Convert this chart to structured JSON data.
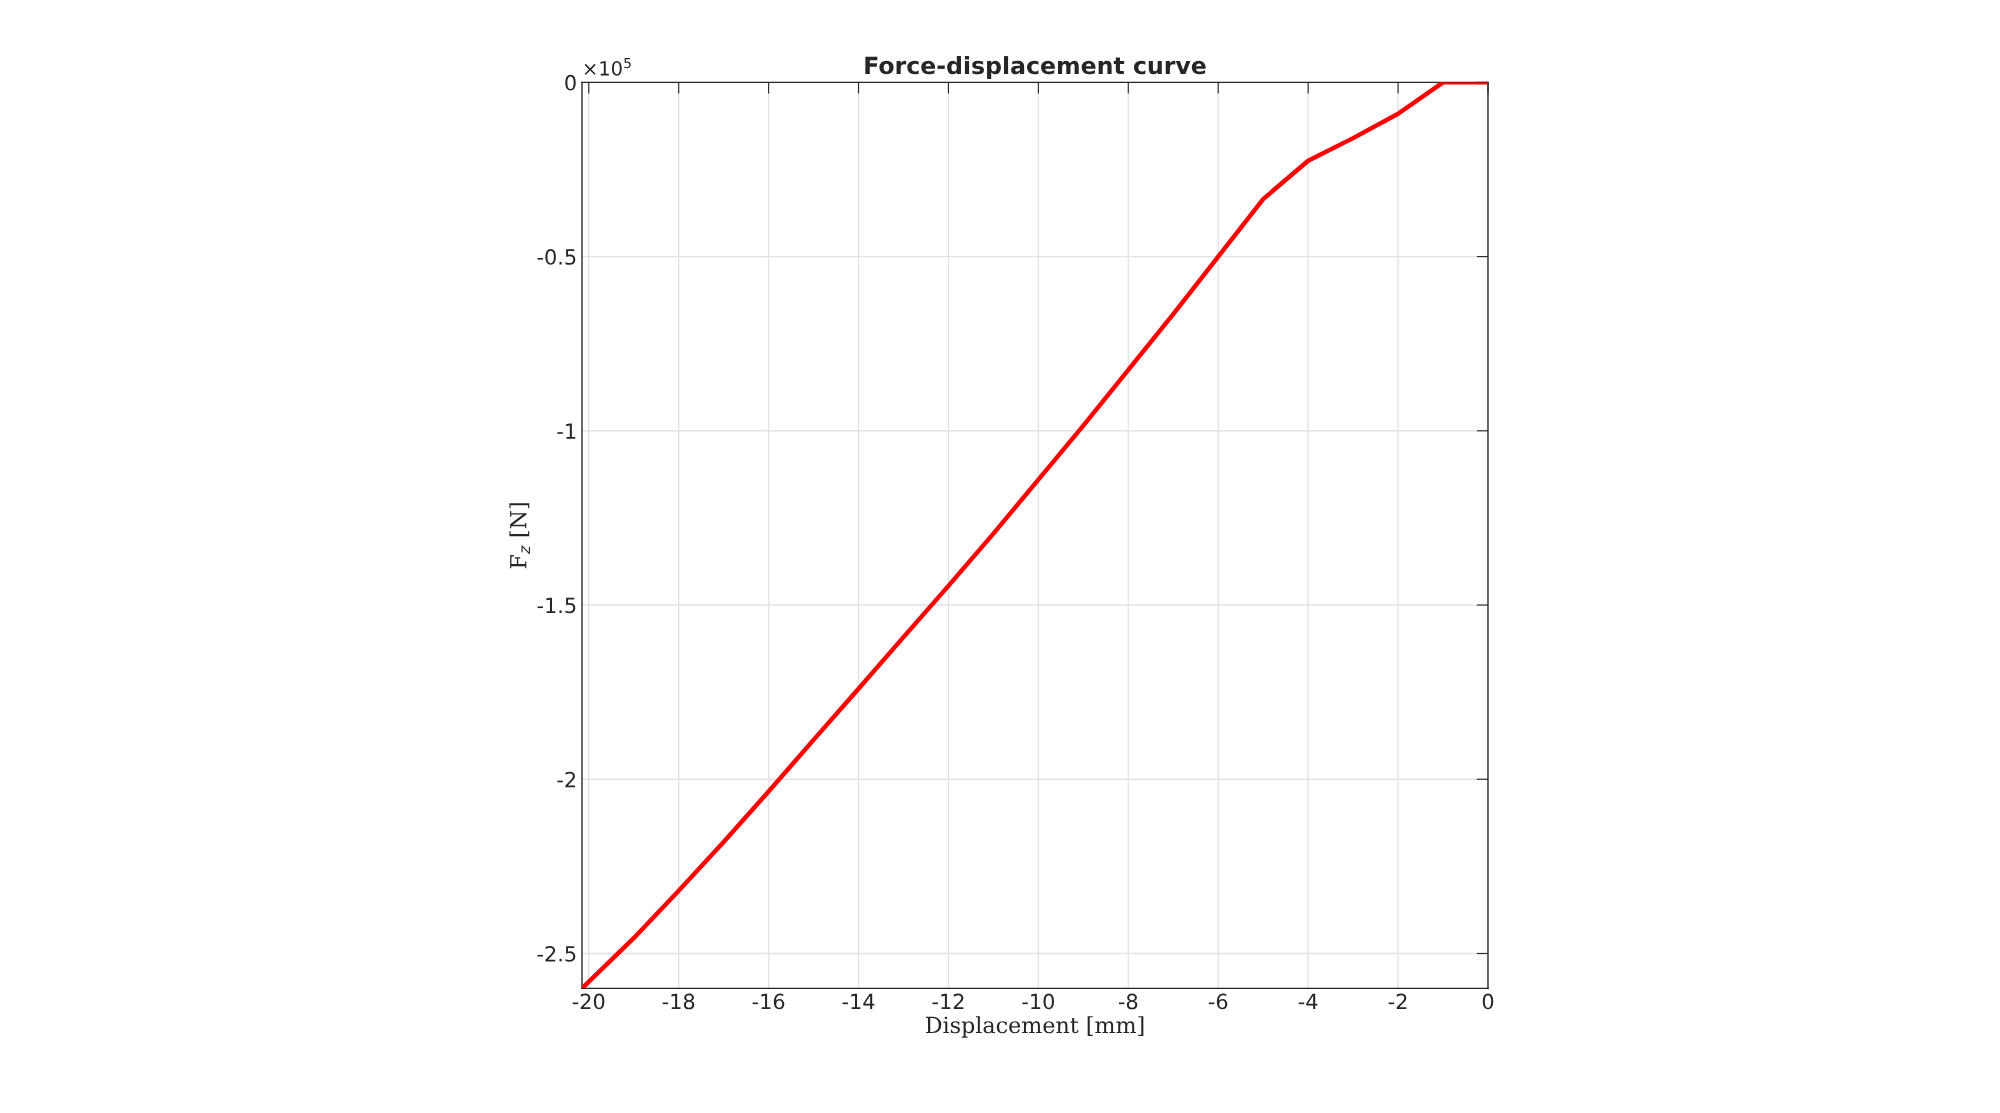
{
  "chart_data": {
    "type": "line",
    "title": "Force-displacement curve",
    "xlabel": "Displacement [mm]",
    "ylabel": "F$_{z}$ [N]",
    "annotations": [
      "×10$^{5}$"
    ],
    "x": [
      -20.15,
      -19,
      -18,
      -17,
      -16,
      -15,
      -14,
      -13,
      -12,
      -11,
      -10,
      -9,
      -8,
      -7,
      -6,
      -5,
      -4,
      -3,
      -2,
      -1,
      0
    ],
    "series": [
      {
        "color": "#ff0000",
        "values": [
          -2.6,
          -2.456,
          -2.32,
          -2.18,
          -2.035,
          -1.887,
          -1.74,
          -1.592,
          -1.445,
          -1.295,
          -1.14,
          -0.985,
          -0.825,
          -0.665,
          -0.5,
          -0.335,
          -0.225,
          -0.16,
          -0.09,
          0,
          0
        ]
      }
    ],
    "xlim": [
      -20.15,
      0
    ],
    "ylim": [
      -2.6,
      0
    ],
    "xticks": [
      -20,
      -18,
      -16,
      -14,
      -12,
      -10,
      -8,
      -6,
      -4,
      -2,
      0
    ],
    "yticks": [
      -2.5,
      -2,
      -1.5,
      -1,
      -0.5,
      0
    ],
    "grid": true,
    "line_style": "solid",
    "marker": "none"
  }
}
